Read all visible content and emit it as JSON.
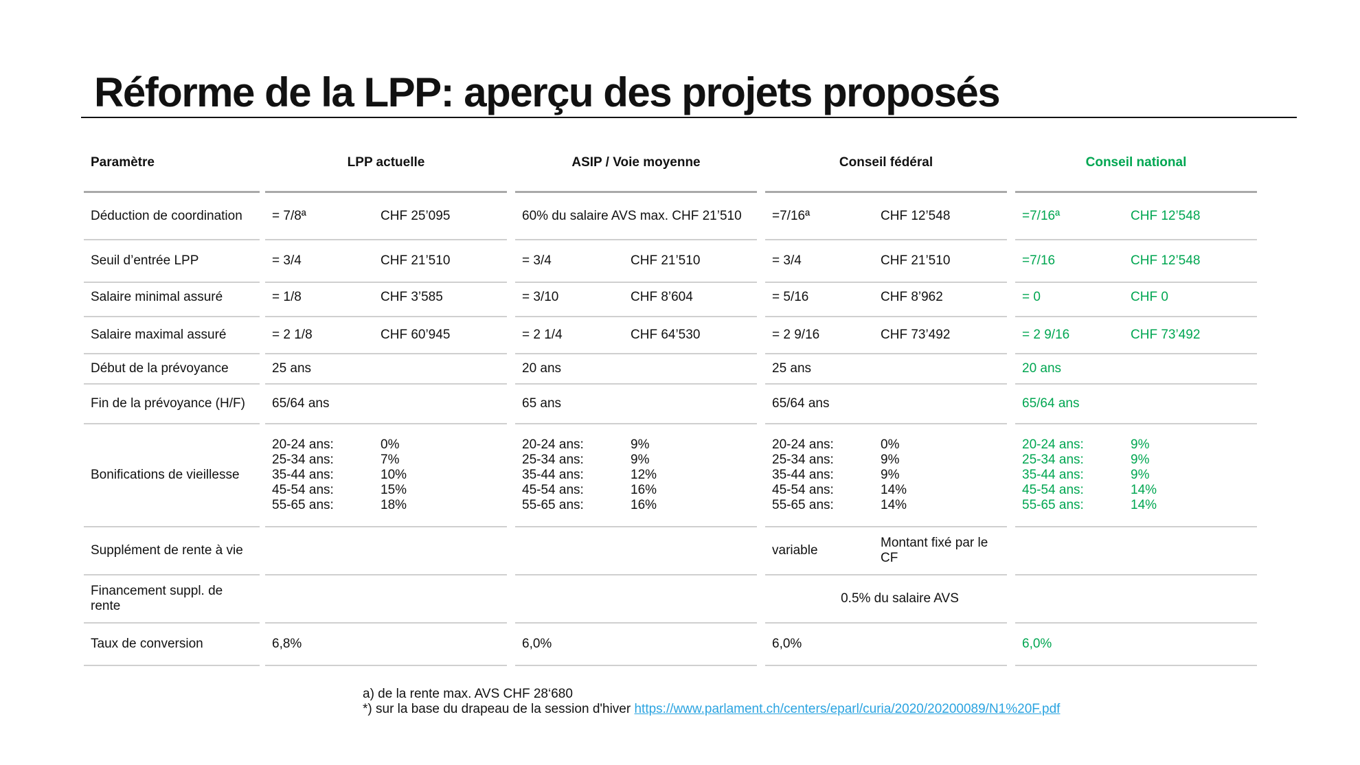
{
  "title": "Réforme de la LPP: aperçu des projets proposés",
  "columns": {
    "param": "Paramètre",
    "lpp": "LPP actuelle",
    "asip": "ASIP / Voie moyenne",
    "cf": "Conseil fédéral",
    "cn": "Conseil national"
  },
  "rows": {
    "deduction": {
      "label": "Déduction de coordination",
      "lpp_a": "= 7/8ª",
      "lpp_b": "CHF 25’095",
      "asip": "60% du salaire AVS max. CHF 21’510",
      "cf_a": "=7/16ª",
      "cf_b": "CHF 12’548",
      "cn_a": "=7/16ª",
      "cn_b": "CHF 12’548"
    },
    "seuil": {
      "label": "Seuil d’entrée LPP",
      "lpp_a": "= 3/4",
      "lpp_b": "CHF 21’510",
      "asip_a": "= 3/4",
      "asip_b": "CHF 21’510",
      "cf_a": "= 3/4",
      "cf_b": "CHF 21’510",
      "cn_a": "=7/16",
      "cn_b": "CHF 12’548"
    },
    "salmin": {
      "label": "Salaire minimal assuré",
      "lpp_a": "= 1/8",
      "lpp_b": "CHF 3’585",
      "asip_a": "= 3/10",
      "asip_b": "CHF 8’604",
      "cf_a": "= 5/16",
      "cf_b": "CHF 8’962",
      "cn_a": "= 0",
      "cn_b": "CHF 0"
    },
    "salmax": {
      "label": "Salaire maximal assuré",
      "lpp_a": "= 2 1/8",
      "lpp_b": "CHF 60’945",
      "asip_a": "= 2 1/4",
      "asip_b": "CHF 64’530",
      "cf_a": "= 2 9/16",
      "cf_b": "CHF 73’492",
      "cn_a": "= 2 9/16",
      "cn_b": "CHF 73’492"
    },
    "debut": {
      "label": "Début de la prévoyance",
      "lpp": "25 ans",
      "asip": "20 ans",
      "cf": "25 ans",
      "cn": "20 ans"
    },
    "fin": {
      "label": "Fin de la prévoyance (H/F)",
      "lpp": "65/64 ans",
      "asip": "65 ans",
      "cf": "65/64 ans",
      "cn": "65/64 ans"
    },
    "bonif": {
      "label": "Bonifications de vieillesse",
      "ages": [
        "20-24 ans:",
        "25-34 ans:",
        "35-44 ans:",
        "45-54 ans:",
        "55-65 ans:"
      ],
      "lpp": [
        "0%",
        "7%",
        "10%",
        "15%",
        "18%"
      ],
      "asip": [
        "9%",
        "9%",
        "12%",
        "16%",
        "16%"
      ],
      "cf": [
        "0%",
        "9%",
        "9%",
        "14%",
        "14%"
      ],
      "cn": [
        "9%",
        "9%",
        "9%",
        "14%",
        "14%"
      ]
    },
    "supplement": {
      "label": "Supplément de rente à vie",
      "cf_a": "variable",
      "cf_b": "Montant fixé par le CF"
    },
    "financement": {
      "label": "Financement suppl. de rente",
      "value": "0.5%  du salaire AVS"
    },
    "taux": {
      "label": "Taux de conversion",
      "lpp": "6,8%",
      "asip": "6,0%",
      "cf": "6,0%",
      "cn": "6,0%"
    }
  },
  "footnotes": {
    "a": "a) de la rente max. AVS CHF 28‘680",
    "b_prefix": "*) sur la base du drapeau de la session d'hiver ",
    "b_link": "https://www.parlament.ch/centers/eparl/curia/2020/20200089/N1%20F.pdf"
  },
  "colors": {
    "text": "#111111",
    "accent_green": "#00a651",
    "link": "#2aa3e0",
    "rule": "#cfcfcf"
  }
}
